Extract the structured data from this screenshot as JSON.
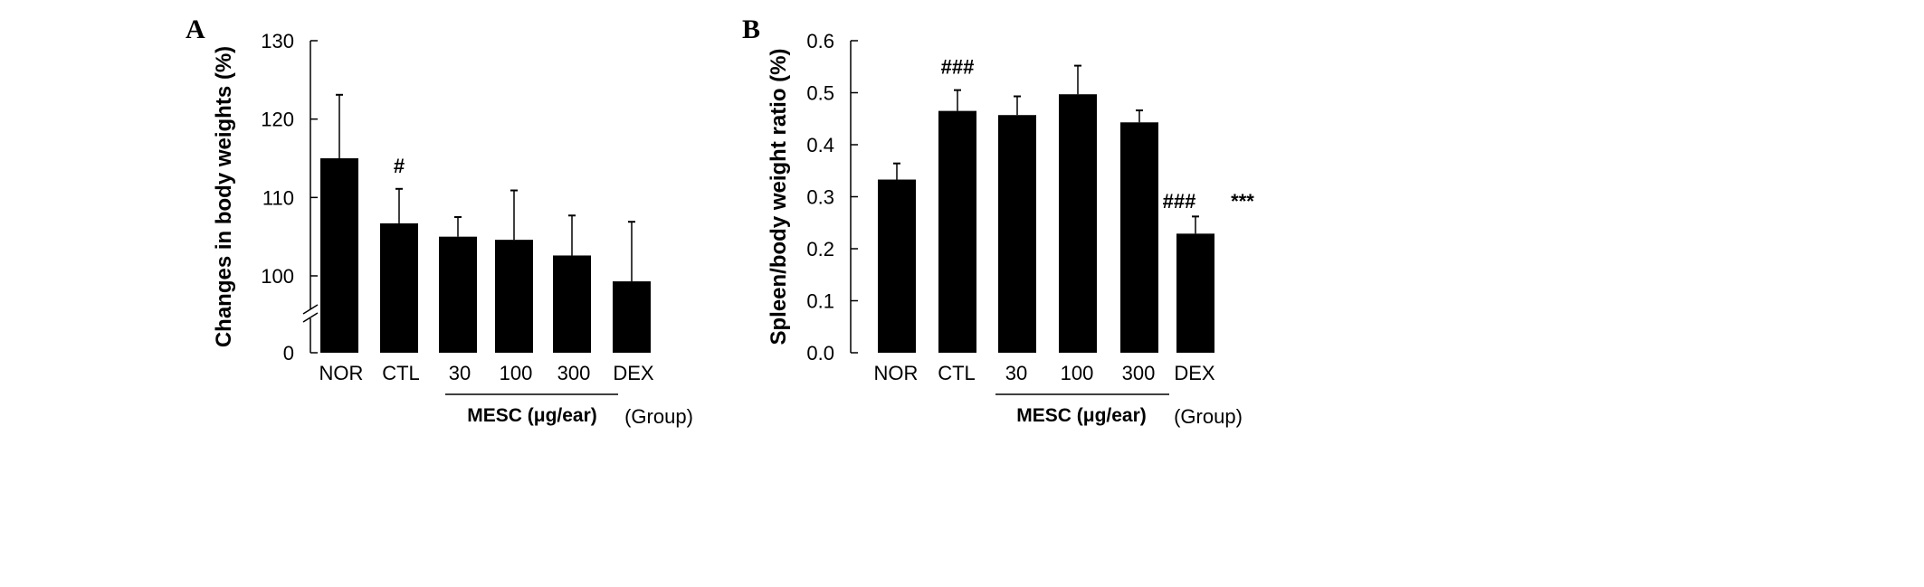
{
  "chart_data": [
    {
      "type": "bar",
      "panel_label": "A",
      "ylabel": "Changes in body weights (%)",
      "categories": [
        "NOR",
        "CTL",
        "30",
        "100",
        "300",
        "DEX"
      ],
      "values": [
        115.0,
        106.7,
        105.0,
        104.6,
        102.6,
        99.3
      ],
      "error_upper": [
        123.1,
        111.1,
        107.5,
        110.9,
        107.7,
        106.9
      ],
      "yticks": [
        "0",
        "100",
        "110",
        "120",
        "130"
      ],
      "ylim": [
        95,
        130
      ],
      "axis_break": true,
      "annotations": [
        {
          "category": "CTL",
          "text": "#"
        }
      ],
      "group_label": "MESC (μg/ear)",
      "group_categories": [
        "30",
        "100",
        "300"
      ],
      "xlabel": "(Group)",
      "bar_color": "#000000"
    },
    {
      "type": "bar",
      "panel_label": "B",
      "ylabel": "Spleen/body weight ratio (%)",
      "categories": [
        "NOR",
        "CTL",
        "30",
        "100",
        "300",
        "DEX"
      ],
      "values": [
        0.333,
        0.465,
        0.457,
        0.497,
        0.443,
        0.229
      ],
      "error_upper": [
        0.364,
        0.505,
        0.493,
        0.552,
        0.466,
        0.262
      ],
      "yticks": [
        "0.0",
        "0.1",
        "0.2",
        "0.3",
        "0.4",
        "0.5",
        "0.6"
      ],
      "ylim": [
        0,
        0.6
      ],
      "annotations": [
        {
          "category": "CTL",
          "text": "###"
        },
        {
          "category": "DEX",
          "text": "###"
        },
        {
          "category": "DEX",
          "text": "***"
        }
      ],
      "group_label": "MESC (μg/ear)",
      "group_categories": [
        "30",
        "100",
        "300"
      ],
      "xlabel": "(Group)",
      "bar_color": "#000000"
    }
  ]
}
